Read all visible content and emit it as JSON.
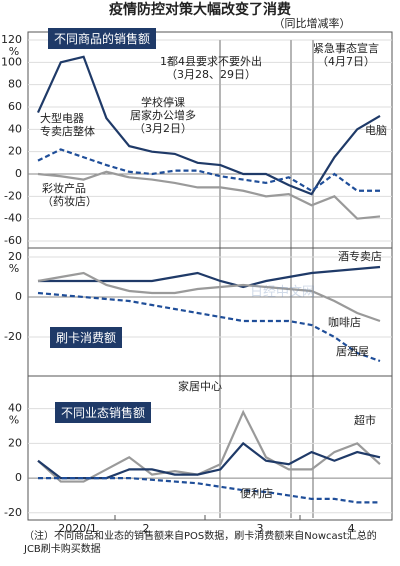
{
  "chart_data": [
    {
      "type": "line",
      "title": "疫情防控对策大幅改变了消费",
      "subtitle": "（同比增减率）",
      "panel_label": "不同商品的销售额",
      "unit": "%",
      "ylim": [
        -60,
        120
      ],
      "yticks": [
        120,
        100,
        80,
        60,
        40,
        20,
        0,
        -20,
        -40,
        -60
      ],
      "grid": true,
      "annotations": [
        "学校停课\n居家办公增多\n（3月2日）",
        "1都4县要求不要外出\n（3月28、29日）",
        "紧急事态宣言\n（4月7日）"
      ],
      "series": [
        {
          "name": "电脑",
          "color": "#1f3a68",
          "dash": false,
          "values": [
            55,
            100,
            105,
            50,
            25,
            20,
            18,
            10,
            8,
            0,
            0,
            -10,
            -18,
            15,
            40,
            52
          ]
        },
        {
          "name": "大型电器\n专卖店整体",
          "color": "#1f4e99",
          "dash": true,
          "values": [
            12,
            22,
            15,
            8,
            2,
            0,
            3,
            3,
            -2,
            -5,
            -8,
            -3,
            -15,
            0,
            -15,
            -15
          ]
        },
        {
          "name": "彩妆产品\n（药妆店）",
          "color": "#9a9a9a",
          "dash": false,
          "values": [
            0,
            -2,
            -5,
            2,
            -3,
            -5,
            -8,
            -12,
            -12,
            -15,
            -20,
            -18,
            -28,
            -20,
            -40,
            -38
          ]
        }
      ]
    },
    {
      "type": "line",
      "panel_label": "刷卡消费额",
      "unit": "%",
      "watermark": "日经中文网",
      "ylim": [
        -37.5,
        22.5
      ],
      "yticks": [
        20,
        0,
        -20
      ],
      "grid": true,
      "series": [
        {
          "name": "酒专卖店",
          "color": "#1f3a68",
          "dash": false,
          "values": [
            8,
            8,
            8,
            8,
            8,
            8,
            10,
            12,
            8,
            5,
            8,
            10,
            12,
            13,
            14,
            15
          ]
        },
        {
          "name": "咖啡店",
          "color": "#9a9a9a",
          "dash": false,
          "values": [
            8,
            10,
            12,
            6,
            3,
            2,
            2,
            4,
            5,
            6,
            5,
            4,
            3,
            -2,
            -8,
            -12
          ]
        },
        {
          "name": "居酒屋",
          "color": "#1f4e99",
          "dash": true,
          "values": [
            2,
            1,
            0,
            -1,
            -2,
            -4,
            -6,
            -8,
            -10,
            -12,
            -12,
            -12,
            -14,
            -20,
            -28,
            -32
          ]
        }
      ]
    },
    {
      "type": "line",
      "panel_label": "不同业态销售额",
      "unit": "%",
      "ylim": [
        -23,
        45
      ],
      "yticks": [
        40,
        20,
        0,
        -20
      ],
      "grid": true,
      "categories": [
        null,
        null,
        "2020/1",
        null,
        null,
        "2",
        null,
        null,
        null,
        null,
        "3",
        null,
        null,
        null,
        "4",
        null
      ],
      "note": "（注）不同商品和业态的销售额来自POS数据，刷卡消费额来自Nowcast汇总的JCB刷卡购买数据",
      "series": [
        {
          "name": "家居中心",
          "color": "#9a9a9a",
          "dash": false,
          "values": [
            10,
            -2,
            -2,
            5,
            12,
            2,
            4,
            2,
            8,
            38,
            12,
            5,
            5,
            15,
            20,
            8
          ]
        },
        {
          "name": "超市",
          "color": "#1f3a68",
          "dash": false,
          "values": [
            10,
            0,
            0,
            0,
            5,
            5,
            2,
            2,
            5,
            20,
            10,
            8,
            15,
            10,
            15,
            12
          ]
        },
        {
          "name": "便利店",
          "color": "#1f4e99",
          "dash": true,
          "values": [
            0,
            0,
            0,
            0,
            0,
            -1,
            -2,
            -3,
            -5,
            -7,
            -8,
            -10,
            -12,
            -12,
            -14,
            -14
          ]
        }
      ]
    }
  ]
}
